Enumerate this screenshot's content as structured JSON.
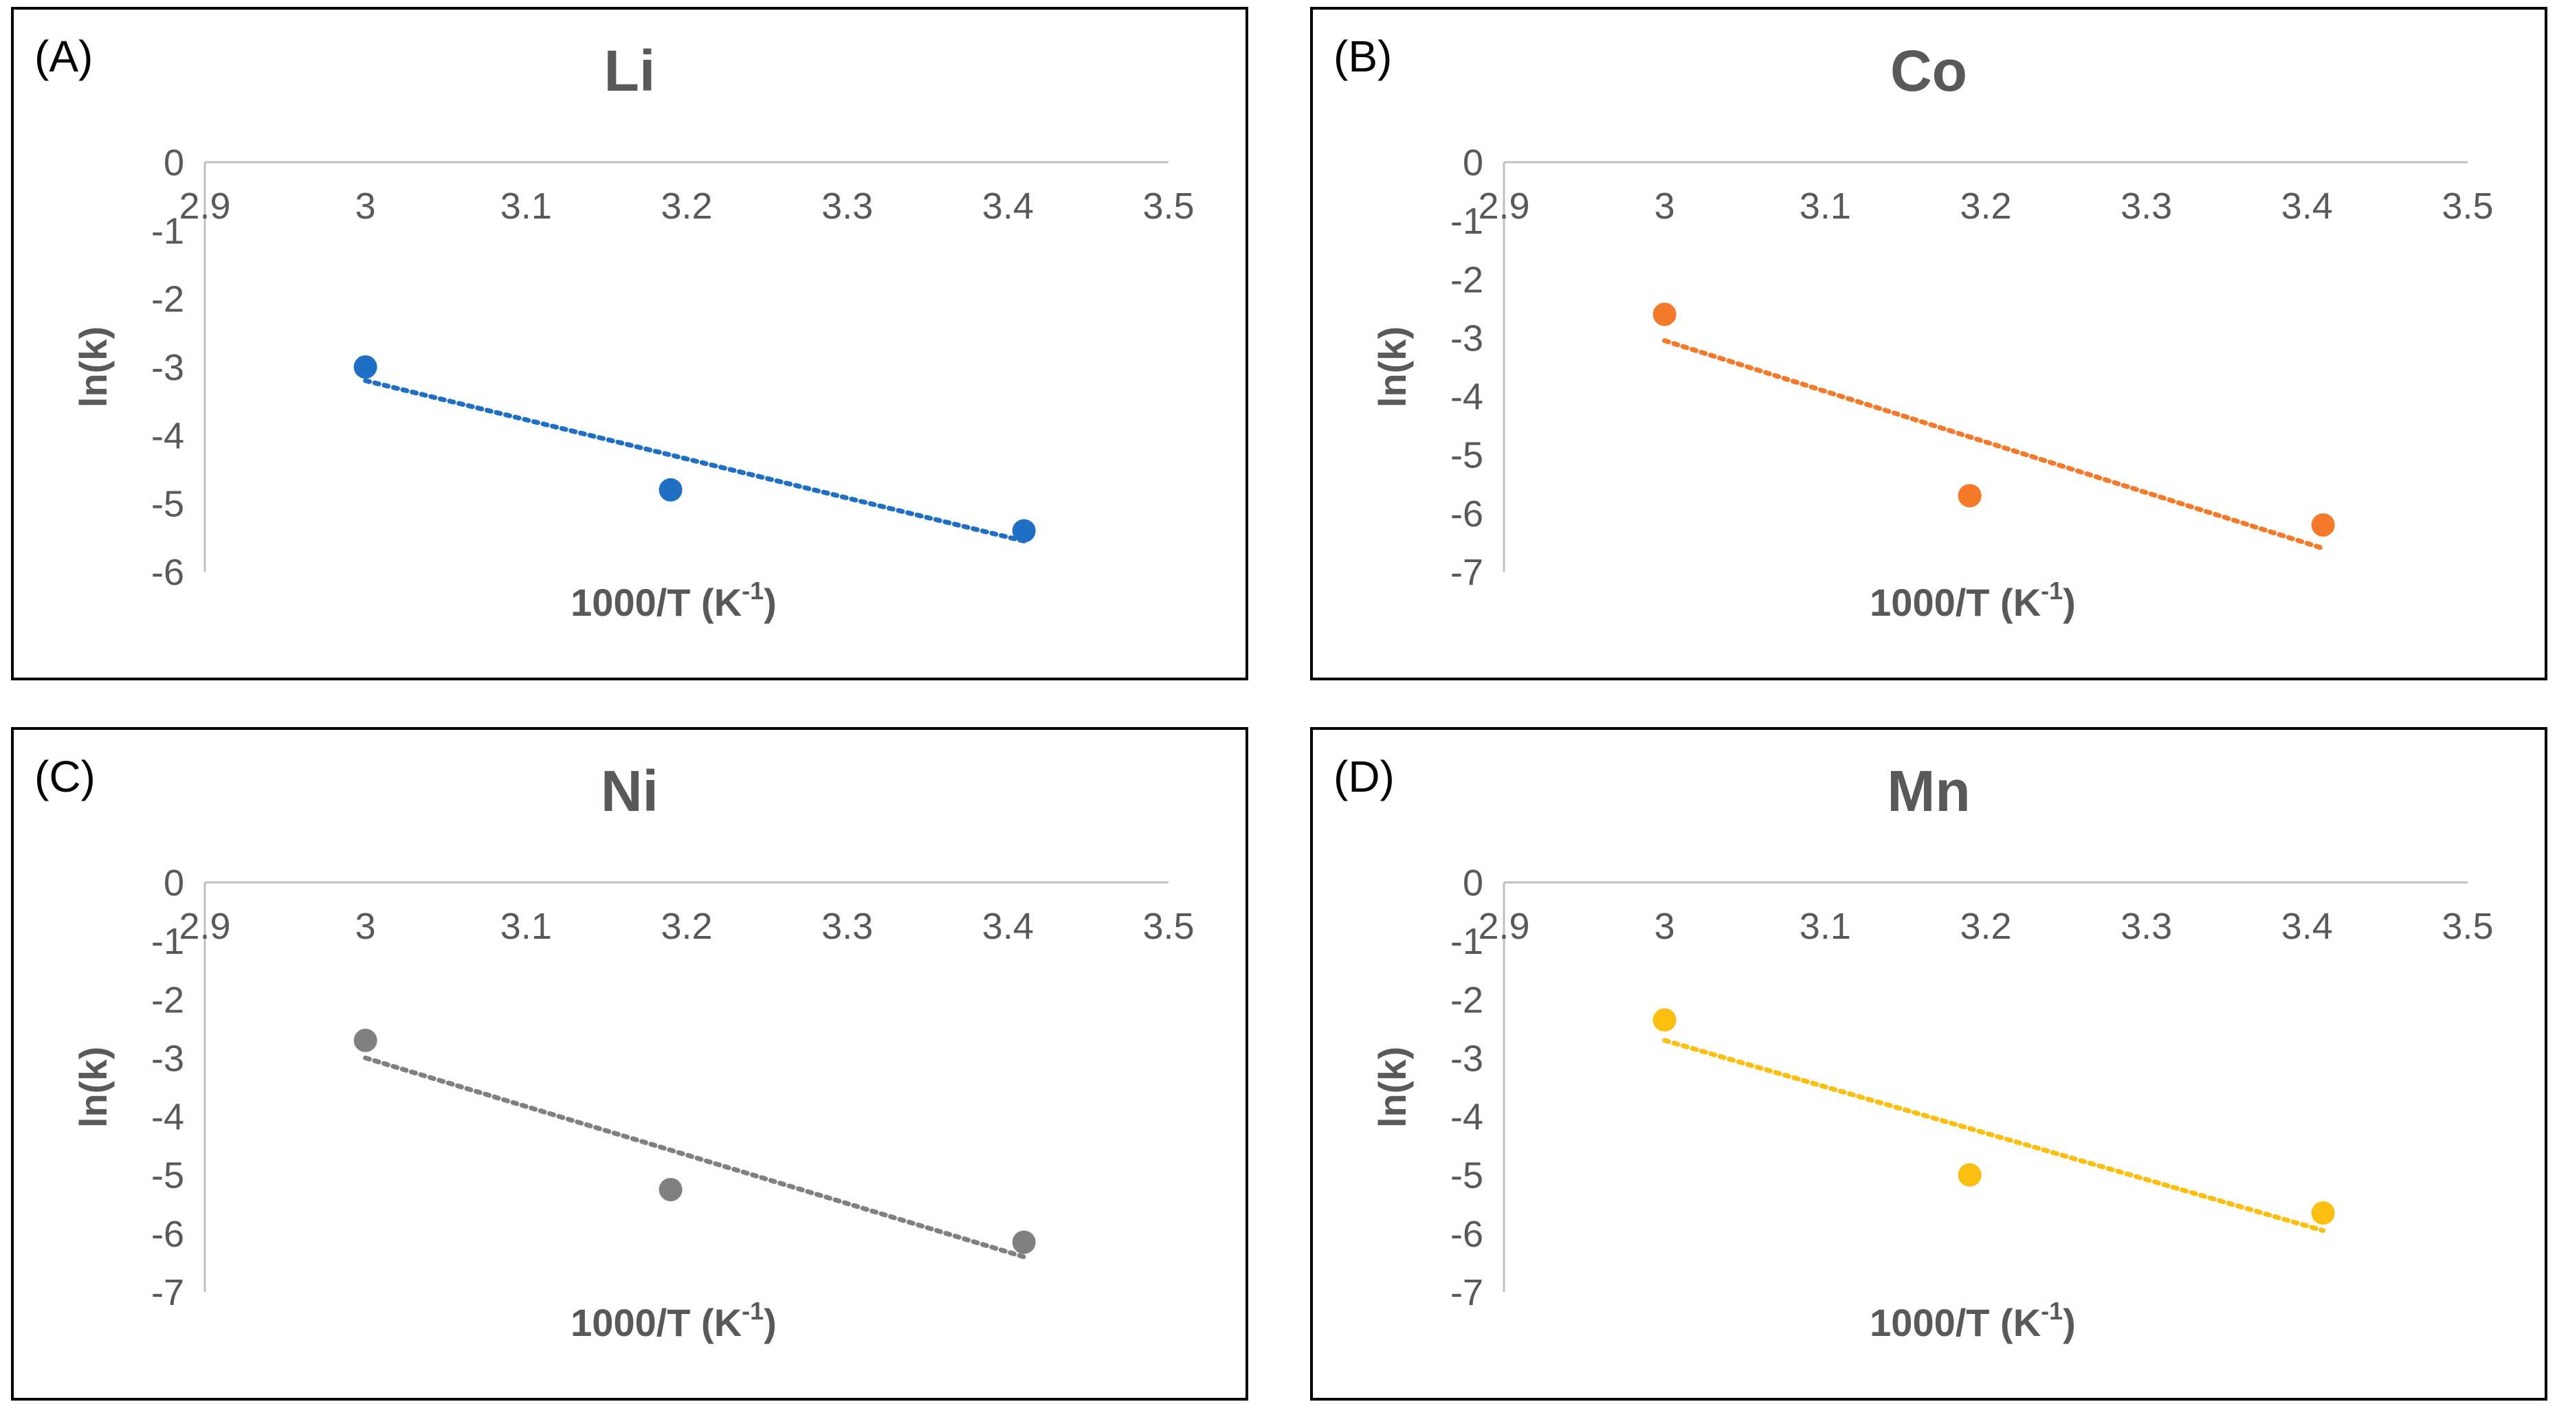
{
  "chart_data": [
    {
      "type": "scatter",
      "panel_label": "(A)",
      "title": "Li",
      "xlabel": "1000/T (K",
      "xlabel_sup": "-1",
      "xlabel_close": ")",
      "ylabel": "ln(k)",
      "xlim": [
        2.9,
        3.5
      ],
      "ylim": [
        -6,
        0
      ],
      "xticks": [
        "2.9",
        "3",
        "3.1",
        "3.2",
        "3.3",
        "3.4",
        "3.5"
      ],
      "yticks": [
        "0",
        "-1",
        "-2",
        "-3",
        "-4",
        "-5",
        "-6"
      ],
      "color": "#1f6fc4",
      "x": [
        3.0,
        3.19,
        3.41
      ],
      "y": [
        -3.0,
        -4.8,
        -5.4
      ],
      "trendline": {
        "x": [
          3.0,
          3.41
        ],
        "y": [
          -3.2,
          -5.55
        ]
      }
    },
    {
      "type": "scatter",
      "panel_label": "(B)",
      "title": "Co",
      "xlabel": "1000/T (K",
      "xlabel_sup": "-1",
      "xlabel_close": ")",
      "ylabel": "ln(k)",
      "xlim": [
        2.9,
        3.5
      ],
      "ylim": [
        -7,
        0
      ],
      "xticks": [
        "2.9",
        "3",
        "3.1",
        "3.2",
        "3.3",
        "3.4",
        "3.5"
      ],
      "yticks": [
        "0",
        "-1",
        "-2",
        "-3",
        "-4",
        "-5",
        "-6",
        "-7"
      ],
      "color": "#f47a2a",
      "x": [
        3.0,
        3.19,
        3.41
      ],
      "y": [
        -2.6,
        -5.7,
        -6.2
      ],
      "trendline": {
        "x": [
          3.0,
          3.41
        ],
        "y": [
          -3.05,
          -6.6
        ]
      }
    },
    {
      "type": "scatter",
      "panel_label": "(C)",
      "title": "Ni",
      "xlabel": "1000/T (K",
      "xlabel_sup": "-1",
      "xlabel_close": ")",
      "ylabel": "ln(k)",
      "xlim": [
        2.9,
        3.5
      ],
      "ylim": [
        -7,
        0
      ],
      "xticks": [
        "2.9",
        "3",
        "3.1",
        "3.2",
        "3.3",
        "3.4",
        "3.5"
      ],
      "yticks": [
        "0",
        "-1",
        "-2",
        "-3",
        "-4",
        "-5",
        "-6",
        "-7"
      ],
      "color": "#808080",
      "x": [
        3.0,
        3.19,
        3.41
      ],
      "y": [
        -2.7,
        -5.25,
        -6.15
      ],
      "trendline": {
        "x": [
          3.0,
          3.41
        ],
        "y": [
          -3.0,
          -6.4
        ]
      }
    },
    {
      "type": "scatter",
      "panel_label": "(D)",
      "title": "Mn",
      "xlabel": "1000/T (K",
      "xlabel_sup": "-1",
      "xlabel_close": ")",
      "ylabel": "ln(k)",
      "xlim": [
        2.9,
        3.5
      ],
      "ylim": [
        -7,
        0
      ],
      "xticks": [
        "2.9",
        "3",
        "3.1",
        "3.2",
        "3.3",
        "3.4",
        "3.5"
      ],
      "yticks": [
        "0",
        "-1",
        "-2",
        "-3",
        "-4",
        "-5",
        "-6",
        "-7"
      ],
      "color": "#fcbf0f",
      "x": [
        3.0,
        3.19,
        3.41
      ],
      "y": [
        -2.35,
        -5.0,
        -5.65
      ],
      "trendline": {
        "x": [
          3.0,
          3.41
        ],
        "y": [
          -2.7,
          -5.95
        ]
      }
    }
  ]
}
